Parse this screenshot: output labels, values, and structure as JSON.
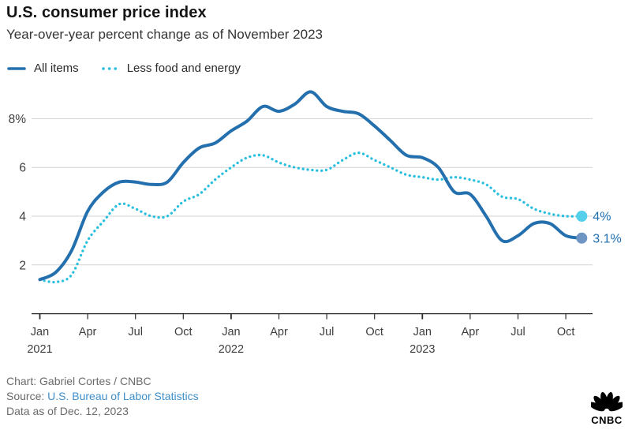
{
  "header": {
    "title": "U.S. consumer price index",
    "subtitle": "Year-over-year percent change as of November 2023"
  },
  "legend": [
    {
      "label": "All items",
      "color": "#2470AE",
      "style": "solid"
    },
    {
      "label": "Less food and energy",
      "color": "#29BFDF",
      "style": "dotted"
    }
  ],
  "chart_data": {
    "type": "line",
    "title": "U.S. consumer price index",
    "subtitle": "Year-over-year percent change as of November 2023",
    "xlabel": "",
    "ylabel": "Year-over-year percent change",
    "ylim": [
      0,
      9.6
    ],
    "grid": "horizontal",
    "grid_color": "#d2d2d2",
    "axis_color": "#2b2b2b",
    "tick_label_color": "#3d3d3d",
    "value_label_color": "#1F6FB2",
    "categories": [
      "Jan 2021",
      "Feb 2021",
      "Mar 2021",
      "Apr 2021",
      "May 2021",
      "Jun 2021",
      "Jul 2021",
      "Aug 2021",
      "Sep 2021",
      "Oct 2021",
      "Nov 2021",
      "Dec 2021",
      "Jan 2022",
      "Feb 2022",
      "Mar 2022",
      "Apr 2022",
      "May 2022",
      "Jun 2022",
      "Jul 2022",
      "Aug 2022",
      "Sep 2022",
      "Oct 2022",
      "Nov 2022",
      "Dec 2022",
      "Jan 2023",
      "Feb 2023",
      "Mar 2023",
      "Apr 2023",
      "May 2023",
      "Jun 2023",
      "Jul 2023",
      "Aug 2023",
      "Sep 2023",
      "Oct 2023",
      "Nov 2023"
    ],
    "yticks": [
      {
        "value": 2,
        "label": "2"
      },
      {
        "value": 4,
        "label": "4"
      },
      {
        "value": 6,
        "label": "6"
      },
      {
        "value": 8,
        "label": "8%"
      }
    ],
    "xticks": [
      {
        "i": 0,
        "label": "Jan",
        "year": "2021"
      },
      {
        "i": 3,
        "label": "Apr"
      },
      {
        "i": 6,
        "label": "Jul"
      },
      {
        "i": 9,
        "label": "Oct"
      },
      {
        "i": 12,
        "label": "Jan",
        "year": "2022"
      },
      {
        "i": 15,
        "label": "Apr"
      },
      {
        "i": 18,
        "label": "Jul"
      },
      {
        "i": 21,
        "label": "Oct"
      },
      {
        "i": 24,
        "label": "Jan",
        "year": "2023"
      },
      {
        "i": 27,
        "label": "Apr"
      },
      {
        "i": 30,
        "label": "Jul"
      },
      {
        "i": 33,
        "label": "Oct"
      }
    ],
    "series": [
      {
        "name": "All items",
        "style": "solid",
        "color": "#2470AE",
        "marker_color": "#6F95C4",
        "end_label": "3.1%",
        "values": [
          1.4,
          1.7,
          2.6,
          4.2,
          5.0,
          5.4,
          5.4,
          5.3,
          5.4,
          6.2,
          6.8,
          7.0,
          7.5,
          7.9,
          8.5,
          8.3,
          8.6,
          9.1,
          8.5,
          8.3,
          8.2,
          7.7,
          7.1,
          6.5,
          6.4,
          6.0,
          5.0,
          4.9,
          4.0,
          3.0,
          3.2,
          3.7,
          3.7,
          3.2,
          3.1
        ]
      },
      {
        "name": "Less food and energy",
        "style": "dotted",
        "color": "#29BFDF",
        "marker_color": "#55D0EA",
        "end_label": "4%",
        "values": [
          1.4,
          1.3,
          1.6,
          3.0,
          3.8,
          4.5,
          4.3,
          4.0,
          4.0,
          4.6,
          4.9,
          5.5,
          6.0,
          6.4,
          6.5,
          6.2,
          6.0,
          5.9,
          5.9,
          6.3,
          6.6,
          6.3,
          6.0,
          5.7,
          5.6,
          5.5,
          5.6,
          5.5,
          5.3,
          4.8,
          4.7,
          4.3,
          4.1,
          4.0,
          4.0
        ]
      }
    ]
  },
  "footer": {
    "credit": "Chart: Gabriel Cortes / CNBC",
    "source_prefix": "Source: ",
    "source_link": "U.S. Bureau of Labor Statistics",
    "source_link_color": "#3F8FCA",
    "data_as_of": "Data as of Dec. 12, 2023",
    "logo_text": "CNBC",
    "logo_color": "#000000"
  }
}
